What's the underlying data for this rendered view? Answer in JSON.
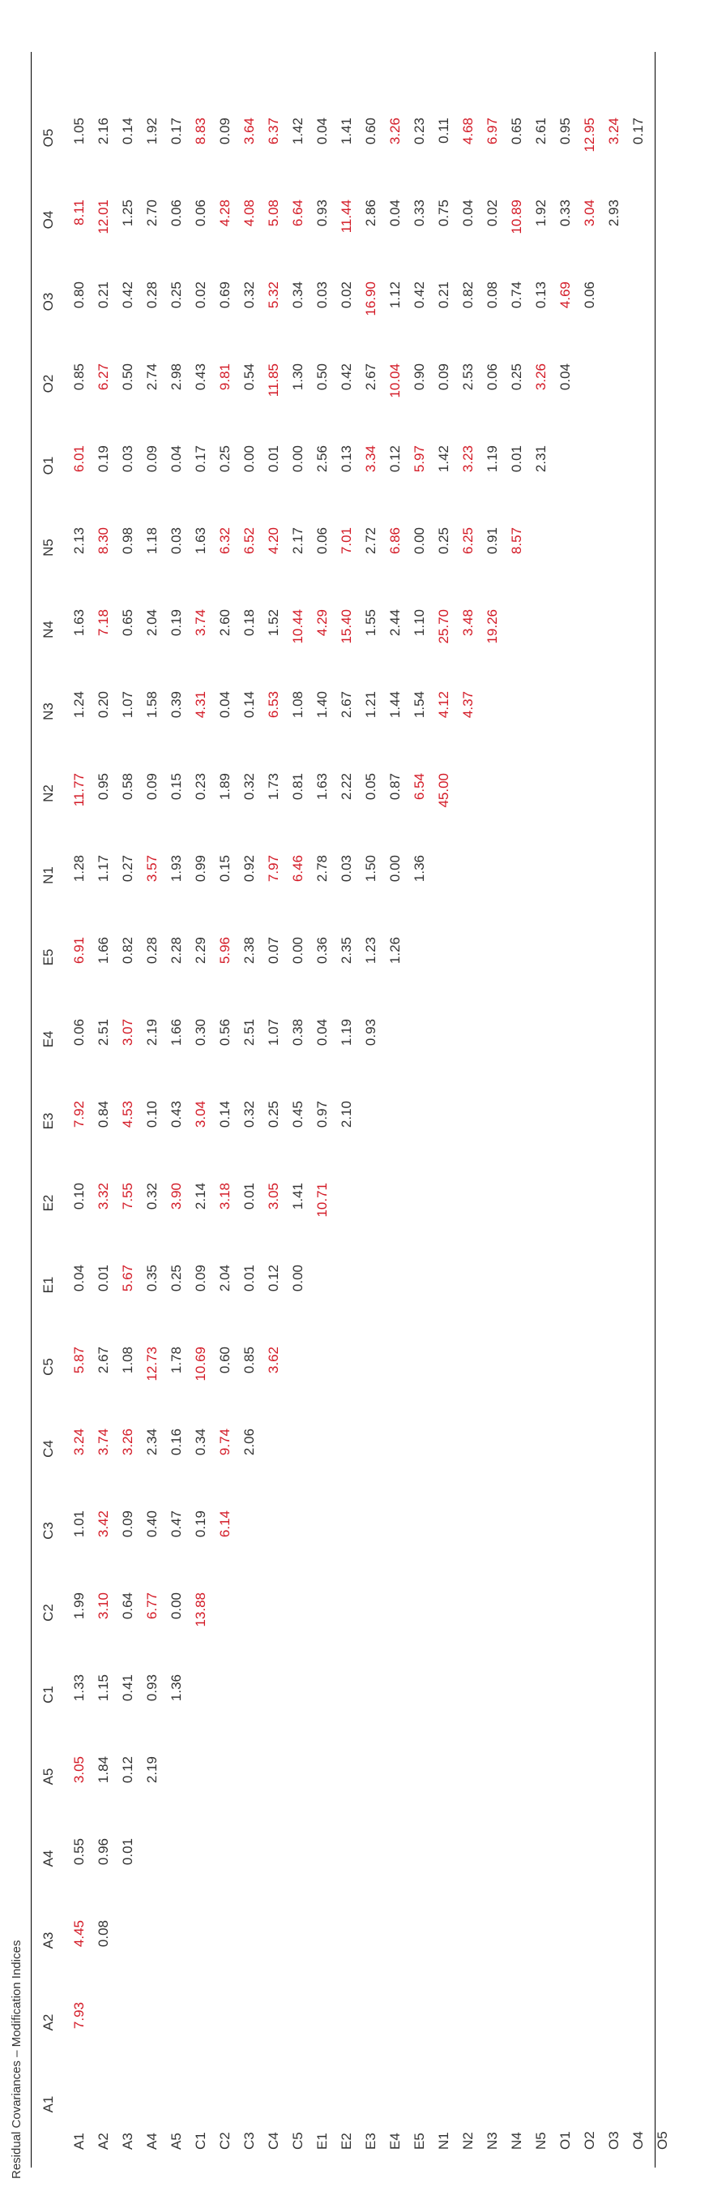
{
  "caption": "Residual Covariances – Modification Indices",
  "highlight_color": "#d31a26",
  "text_color": "#333333",
  "highlight_rule": "values greater than 3 shown in red",
  "columns": [
    "A1",
    "A2",
    "A3",
    "A4",
    "A5",
    "C1",
    "C2",
    "C3",
    "C4",
    "C5",
    "E1",
    "E2",
    "E3",
    "E4",
    "E5",
    "N1",
    "N2",
    "N3",
    "N4",
    "N5",
    "O1",
    "O2",
    "O3",
    "O4",
    "O5"
  ],
  "rows": [
    "A1",
    "A2",
    "A3",
    "A4",
    "A5",
    "C1",
    "C2",
    "C3",
    "C4",
    "C5",
    "E1",
    "E2",
    "E3",
    "E4",
    "E5",
    "N1",
    "N2",
    "N3",
    "N4",
    "N5",
    "O1",
    "O2",
    "O3",
    "O4",
    "O5"
  ],
  "values": [
    [
      "",
      "7.93",
      "4.45",
      "0.55",
      "3.05",
      "1.33",
      "1.99",
      "1.01",
      "3.24",
      "5.87",
      "0.04",
      "0.10",
      "7.92",
      "0.06",
      "6.91",
      "1.28",
      "11.77",
      "1.24",
      "1.63",
      "2.13",
      "6.01",
      "0.85",
      "0.80",
      "8.11",
      "1.05"
    ],
    [
      "",
      "",
      "0.08",
      "0.96",
      "1.84",
      "1.15",
      "3.10",
      "3.42",
      "3.74",
      "2.67",
      "0.01",
      "3.32",
      "0.84",
      "2.51",
      "1.66",
      "1.17",
      "0.95",
      "0.20",
      "7.18",
      "8.30",
      "0.19",
      "6.27",
      "0.21",
      "12.01",
      "2.16"
    ],
    [
      "",
      "",
      "",
      "0.01",
      "0.12",
      "0.41",
      "0.64",
      "0.09",
      "3.26",
      "1.08",
      "5.67",
      "7.55",
      "4.53",
      "3.07",
      "0.82",
      "0.27",
      "0.58",
      "1.07",
      "0.65",
      "0.98",
      "0.03",
      "0.50",
      "0.42",
      "1.25",
      "0.14"
    ],
    [
      "",
      "",
      "",
      "",
      "2.19",
      "0.93",
      "6.77",
      "0.40",
      "2.34",
      "12.73",
      "0.35",
      "0.32",
      "0.10",
      "2.19",
      "0.28",
      "3.57",
      "0.09",
      "1.58",
      "2.04",
      "1.18",
      "0.09",
      "2.74",
      "0.28",
      "2.70",
      "1.92"
    ],
    [
      "",
      "",
      "",
      "",
      "",
      "1.36",
      "0.00",
      "0.47",
      "0.16",
      "1.78",
      "0.25",
      "3.90",
      "0.43",
      "1.66",
      "2.28",
      "1.93",
      "0.15",
      "0.39",
      "0.19",
      "0.03",
      "0.04",
      "2.98",
      "0.25",
      "0.06",
      "0.17"
    ],
    [
      "",
      "",
      "",
      "",
      "",
      "",
      "13.88",
      "0.19",
      "0.34",
      "10.69",
      "0.09",
      "2.14",
      "3.04",
      "0.30",
      "2.29",
      "0.99",
      "0.23",
      "4.31",
      "3.74",
      "1.63",
      "0.17",
      "0.43",
      "0.02",
      "0.06",
      "8.83"
    ],
    [
      "",
      "",
      "",
      "",
      "",
      "",
      "",
      "6.14",
      "9.74",
      "0.60",
      "2.04",
      "3.18",
      "0.14",
      "0.56",
      "5.96",
      "0.15",
      "1.89",
      "0.04",
      "2.60",
      "6.32",
      "0.25",
      "9.81",
      "0.69",
      "4.28",
      "0.09"
    ],
    [
      "",
      "",
      "",
      "",
      "",
      "",
      "",
      "",
      "2.06",
      "0.85",
      "0.01",
      "0.01",
      "0.32",
      "2.51",
      "2.38",
      "0.92",
      "0.32",
      "0.14",
      "0.18",
      "6.52",
      "0.00",
      "0.54",
      "0.32",
      "4.08",
      "3.64"
    ],
    [
      "",
      "",
      "",
      "",
      "",
      "",
      "",
      "",
      "",
      "3.62",
      "0.12",
      "3.05",
      "0.25",
      "1.07",
      "0.07",
      "7.97",
      "1.73",
      "6.53",
      "1.52",
      "4.20",
      "0.01",
      "11.85",
      "5.32",
      "5.08",
      "6.37"
    ],
    [
      "",
      "",
      "",
      "",
      "",
      "",
      "",
      "",
      "",
      "",
      "0.00",
      "1.41",
      "0.45",
      "0.38",
      "0.00",
      "6.46",
      "0.81",
      "1.08",
      "10.44",
      "2.17",
      "0.00",
      "1.30",
      "0.34",
      "6.64",
      "1.42"
    ],
    [
      "",
      "",
      "",
      "",
      "",
      "",
      "",
      "",
      "",
      "",
      "",
      "10.71",
      "0.97",
      "0.04",
      "0.36",
      "2.78",
      "1.63",
      "1.40",
      "4.29",
      "0.06",
      "2.56",
      "0.50",
      "0.03",
      "0.93",
      "0.04"
    ],
    [
      "",
      "",
      "",
      "",
      "",
      "",
      "",
      "",
      "",
      "",
      "",
      "",
      "2.10",
      "1.19",
      "2.35",
      "0.03",
      "2.22",
      "2.67",
      "15.40",
      "7.01",
      "0.13",
      "0.42",
      "0.02",
      "11.44",
      "1.41"
    ],
    [
      "",
      "",
      "",
      "",
      "",
      "",
      "",
      "",
      "",
      "",
      "",
      "",
      "",
      "0.93",
      "1.23",
      "1.50",
      "0.05",
      "1.21",
      "1.55",
      "2.72",
      "3.34",
      "2.67",
      "16.90",
      "2.86",
      "0.60"
    ],
    [
      "",
      "",
      "",
      "",
      "",
      "",
      "",
      "",
      "",
      "",
      "",
      "",
      "",
      "",
      "1.26",
      "0.00",
      "0.87",
      "1.44",
      "2.44",
      "6.86",
      "0.12",
      "10.04",
      "1.12",
      "0.04",
      "3.26"
    ],
    [
      "",
      "",
      "",
      "",
      "",
      "",
      "",
      "",
      "",
      "",
      "",
      "",
      "",
      "",
      "",
      "1.36",
      "6.54",
      "1.54",
      "1.10",
      "0.00",
      "5.97",
      "0.90",
      "0.42",
      "0.33",
      "0.23"
    ],
    [
      "",
      "",
      "",
      "",
      "",
      "",
      "",
      "",
      "",
      "",
      "",
      "",
      "",
      "",
      "",
      "",
      "45.00",
      "4.12",
      "25.70",
      "0.25",
      "1.42",
      "0.09",
      "0.21",
      "0.75",
      "0.11"
    ],
    [
      "",
      "",
      "",
      "",
      "",
      "",
      "",
      "",
      "",
      "",
      "",
      "",
      "",
      "",
      "",
      "",
      "",
      "4.37",
      "3.48",
      "6.25",
      "3.23",
      "2.53",
      "0.82",
      "0.04",
      "4.68"
    ],
    [
      "",
      "",
      "",
      "",
      "",
      "",
      "",
      "",
      "",
      "",
      "",
      "",
      "",
      "",
      "",
      "",
      "",
      "",
      "19.26",
      "0.91",
      "1.19",
      "0.06",
      "0.08",
      "0.02",
      "6.97"
    ],
    [
      "",
      "",
      "",
      "",
      "",
      "",
      "",
      "",
      "",
      "",
      "",
      "",
      "",
      "",
      "",
      "",
      "",
      "",
      "",
      "8.57",
      "0.01",
      "0.25",
      "0.74",
      "10.89",
      "0.65"
    ],
    [
      "",
      "",
      "",
      "",
      "",
      "",
      "",
      "",
      "",
      "",
      "",
      "",
      "",
      "",
      "",
      "",
      "",
      "",
      "",
      "",
      "2.31",
      "3.26",
      "0.13",
      "1.92",
      "2.61"
    ],
    [
      "",
      "",
      "",
      "",
      "",
      "",
      "",
      "",
      "",
      "",
      "",
      "",
      "",
      "",
      "",
      "",
      "",
      "",
      "",
      "",
      "",
      "0.04",
      "4.69",
      "0.33",
      "0.95"
    ],
    [
      "",
      "",
      "",
      "",
      "",
      "",
      "",
      "",
      "",
      "",
      "",
      "",
      "",
      "",
      "",
      "",
      "",
      "",
      "",
      "",
      "",
      "",
      "0.06",
      "3.04",
      "12.95"
    ],
    [
      "",
      "",
      "",
      "",
      "",
      "",
      "",
      "",
      "",
      "",
      "",
      "",
      "",
      "",
      "",
      "",
      "",
      "",
      "",
      "",
      "",
      "",
      "",
      "2.93",
      "3.24"
    ],
    [
      "",
      "",
      "",
      "",
      "",
      "",
      "",
      "",
      "",
      "",
      "",
      "",
      "",
      "",
      "",
      "",
      "",
      "",
      "",
      "",
      "",
      "",
      "",
      "",
      "0.17"
    ],
    [
      "",
      "",
      "",
      "",
      "",
      "",
      "",
      "",
      "",
      "",
      "",
      "",
      "",
      "",
      "",
      "",
      "",
      "",
      "",
      "",
      "",
      "",
      "",
      "",
      ""
    ]
  ]
}
